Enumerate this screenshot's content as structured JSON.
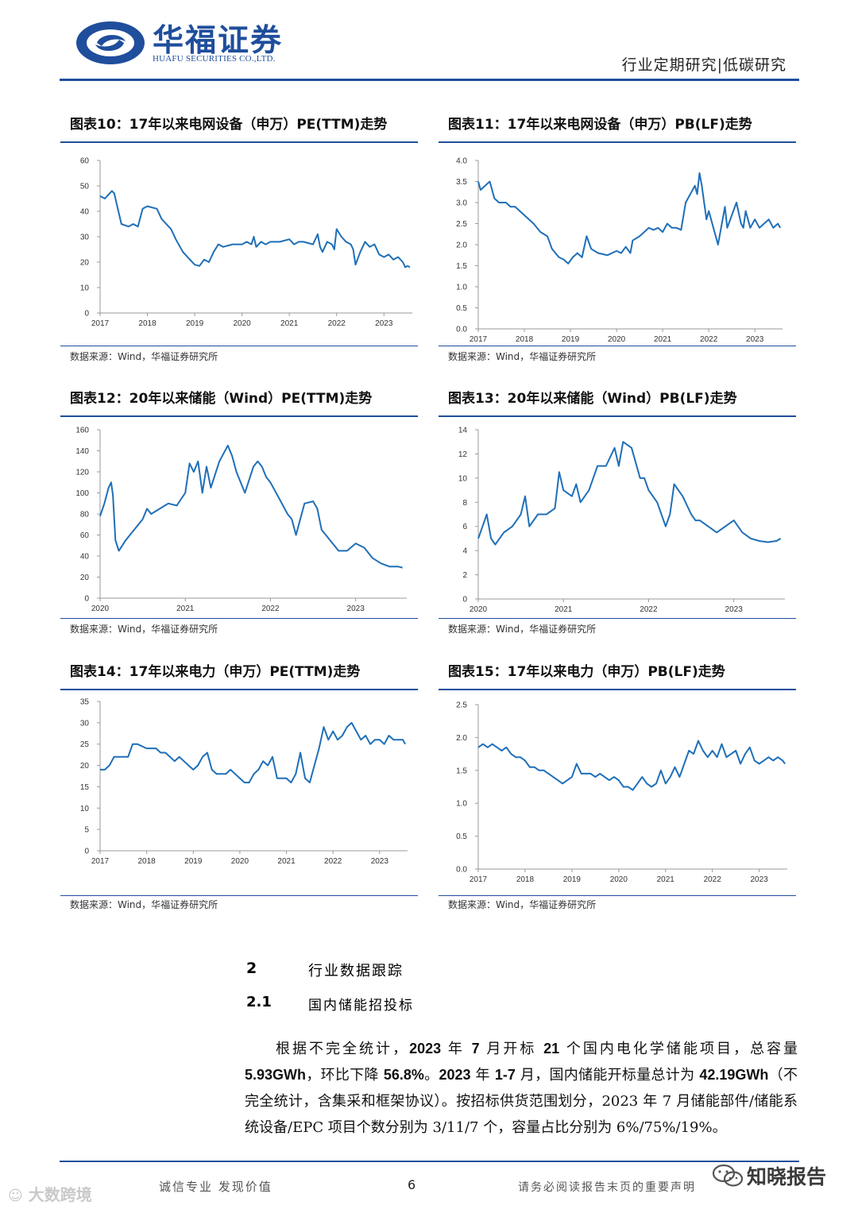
{
  "header": {
    "logo_cn": "华福证券",
    "logo_en": "HUAFU SECURITIES CO.,LTD.",
    "report_type": "行业定期研究|低碳研究"
  },
  "colors": {
    "brand": "#1f4e9c",
    "line": "#1f6fb8"
  },
  "chart_data": [
    {
      "id": "c10",
      "type": "line",
      "title": "图表10：17年以来电网设备（申万）PE(TTM)走势",
      "source": "数据来源：Wind，华福证券研究所",
      "x_ticks": [
        "2017",
        "2018",
        "2019",
        "2020",
        "2021",
        "2022",
        "2023"
      ],
      "x_range": [
        2017,
        2023.6
      ],
      "y_ticks": [
        "0",
        "10",
        "20",
        "30",
        "40",
        "50",
        "60"
      ],
      "ylim": [
        0,
        60
      ],
      "series": [
        {
          "name": "PE(TTM)",
          "x": [
            2017.0,
            2017.1,
            2017.2,
            2017.25,
            2017.3,
            2017.35,
            2017.45,
            2017.6,
            2017.7,
            2017.8,
            2017.9,
            2018.0,
            2018.2,
            2018.3,
            2018.5,
            2018.6,
            2018.75,
            2018.9,
            2019.0,
            2019.1,
            2019.2,
            2019.3,
            2019.4,
            2019.5,
            2019.6,
            2019.8,
            2020.0,
            2020.1,
            2020.2,
            2020.25,
            2020.3,
            2020.4,
            2020.5,
            2020.6,
            2020.8,
            2021.0,
            2021.1,
            2021.2,
            2021.3,
            2021.5,
            2021.6,
            2021.65,
            2021.7,
            2021.8,
            2021.9,
            2021.95,
            2022.0,
            2022.1,
            2022.2,
            2022.3,
            2022.35,
            2022.4,
            2022.5,
            2022.6,
            2022.7,
            2022.8,
            2022.9,
            2023.0,
            2023.1,
            2023.2,
            2023.3,
            2023.4,
            2023.45,
            2023.5,
            2023.55
          ],
          "y": [
            46,
            45,
            47,
            48,
            47,
            43,
            35,
            34,
            35,
            34,
            41,
            42,
            41,
            37,
            33,
            29,
            24,
            21,
            19,
            18.5,
            21,
            20,
            24,
            27,
            26,
            27,
            27,
            28,
            27,
            30,
            26,
            28,
            27,
            28,
            28,
            29,
            27,
            28,
            28,
            27,
            31,
            26,
            24,
            28,
            27,
            25,
            33,
            30,
            28,
            27,
            25,
            19,
            24,
            28,
            26,
            27,
            23,
            22,
            23,
            21,
            22,
            20,
            18,
            18.5,
            18
          ]
        }
      ]
    },
    {
      "id": "c11",
      "type": "line",
      "title": "图表11：17年以来电网设备（申万）PB(LF)走势",
      "source": "数据来源：Wind，华福证券研究所",
      "x_ticks": [
        "2017",
        "2018",
        "2019",
        "2020",
        "2021",
        "2022",
        "2023"
      ],
      "x_range": [
        2017,
        2023.6
      ],
      "y_ticks": [
        "0.0",
        "0.5",
        "1.0",
        "1.5",
        "2.0",
        "2.5",
        "3.0",
        "3.5",
        "4.0"
      ],
      "ylim": [
        0,
        4
      ],
      "series": [
        {
          "name": "PB(LF)",
          "x": [
            2017.0,
            2017.05,
            2017.15,
            2017.25,
            2017.35,
            2017.45,
            2017.6,
            2017.7,
            2017.8,
            2017.9,
            2018.0,
            2018.2,
            2018.35,
            2018.5,
            2018.6,
            2018.75,
            2018.85,
            2018.95,
            2019.05,
            2019.15,
            2019.25,
            2019.35,
            2019.45,
            2019.6,
            2019.8,
            2020.0,
            2020.1,
            2020.2,
            2020.3,
            2020.35,
            2020.5,
            2020.6,
            2020.7,
            2020.8,
            2020.9,
            2021.0,
            2021.1,
            2021.2,
            2021.3,
            2021.4,
            2021.5,
            2021.6,
            2021.7,
            2021.75,
            2021.8,
            2021.85,
            2021.9,
            2021.95,
            2022.0,
            2022.1,
            2022.2,
            2022.3,
            2022.35,
            2022.4,
            2022.5,
            2022.6,
            2022.7,
            2022.75,
            2022.8,
            2022.9,
            2023.0,
            2023.1,
            2023.2,
            2023.3,
            2023.4,
            2023.5,
            2023.55
          ],
          "y": [
            3.5,
            3.3,
            3.4,
            3.5,
            3.1,
            3.0,
            3.0,
            2.9,
            2.9,
            2.8,
            2.7,
            2.5,
            2.3,
            2.2,
            1.9,
            1.7,
            1.65,
            1.55,
            1.7,
            1.8,
            1.7,
            2.2,
            1.9,
            1.8,
            1.75,
            1.85,
            1.8,
            1.95,
            1.8,
            2.1,
            2.2,
            2.3,
            2.4,
            2.35,
            2.4,
            2.3,
            2.5,
            2.4,
            2.4,
            2.35,
            3.0,
            3.2,
            3.4,
            3.2,
            3.7,
            3.4,
            3.0,
            2.6,
            2.8,
            2.4,
            2.0,
            2.6,
            2.9,
            2.4,
            2.7,
            3.0,
            2.5,
            2.4,
            2.8,
            2.4,
            2.6,
            2.4,
            2.5,
            2.6,
            2.4,
            2.5,
            2.4
          ]
        }
      ]
    },
    {
      "id": "c12",
      "type": "line",
      "title": "图表12：20年以来储能（Wind）PE(TTM)走势",
      "source": "数据来源：Wind，华福证券研究所",
      "x_ticks": [
        "2020",
        "2021",
        "2022",
        "2023"
      ],
      "x_range": [
        2020,
        2023.6
      ],
      "y_ticks": [
        "0",
        "20",
        "40",
        "60",
        "80",
        "100",
        "120",
        "140",
        "160"
      ],
      "ylim": [
        0,
        160
      ],
      "series": [
        {
          "name": "PE(TTM)",
          "x": [
            2020.0,
            2020.05,
            2020.1,
            2020.13,
            2020.15,
            2020.18,
            2020.22,
            2020.3,
            2020.4,
            2020.5,
            2020.55,
            2020.6,
            2020.7,
            2020.8,
            2020.9,
            2021.0,
            2021.05,
            2021.1,
            2021.15,
            2021.2,
            2021.25,
            2021.3,
            2021.4,
            2021.5,
            2021.55,
            2021.6,
            2021.7,
            2021.8,
            2021.85,
            2021.9,
            2021.95,
            2022.0,
            2022.1,
            2022.2,
            2022.25,
            2022.3,
            2022.4,
            2022.5,
            2022.55,
            2022.6,
            2022.7,
            2022.8,
            2022.9,
            2023.0,
            2023.1,
            2023.2,
            2023.3,
            2023.4,
            2023.5,
            2023.55
          ],
          "y": [
            78,
            90,
            105,
            110,
            98,
            55,
            45,
            55,
            65,
            75,
            85,
            80,
            85,
            90,
            88,
            100,
            128,
            120,
            130,
            100,
            125,
            105,
            130,
            145,
            135,
            120,
            100,
            125,
            130,
            125,
            115,
            110,
            95,
            80,
            75,
            60,
            90,
            92,
            85,
            65,
            55,
            45,
            45,
            52,
            48,
            38,
            33,
            30,
            30,
            29
          ]
        }
      ]
    },
    {
      "id": "c13",
      "type": "line",
      "title": "图表13：20年以来储能（Wind）PB(LF)走势",
      "source": "数据来源：Wind，华福证券研究所",
      "x_ticks": [
        "2020",
        "2021",
        "2022",
        "2023"
      ],
      "x_range": [
        2020,
        2023.6
      ],
      "y_ticks": [
        "0",
        "2",
        "4",
        "6",
        "8",
        "10",
        "12",
        "14"
      ],
      "ylim": [
        0,
        14
      ],
      "series": [
        {
          "name": "PB(LF)",
          "x": [
            2020.0,
            2020.05,
            2020.1,
            2020.15,
            2020.2,
            2020.3,
            2020.4,
            2020.5,
            2020.55,
            2020.6,
            2020.7,
            2020.8,
            2020.9,
            2020.95,
            2021.0,
            2021.1,
            2021.15,
            2021.2,
            2021.3,
            2021.4,
            2021.5,
            2021.6,
            2021.65,
            2021.7,
            2021.8,
            2021.9,
            2021.95,
            2022.0,
            2022.1,
            2022.2,
            2022.25,
            2022.3,
            2022.4,
            2022.5,
            2022.55,
            2022.6,
            2022.7,
            2022.8,
            2022.9,
            2023.0,
            2023.1,
            2023.2,
            2023.3,
            2023.4,
            2023.5,
            2023.55
          ],
          "y": [
            5,
            6,
            7,
            5,
            4.5,
            5.5,
            6,
            7,
            8.5,
            6,
            7,
            7,
            7.5,
            10.5,
            9,
            8.5,
            9.5,
            8,
            9,
            11,
            11,
            12.5,
            11,
            13,
            12.5,
            10,
            10,
            9,
            8,
            6,
            7,
            9.5,
            8.5,
            7,
            6.5,
            6.5,
            6,
            5.5,
            6,
            6.5,
            5.5,
            5,
            4.8,
            4.7,
            4.8,
            5
          ]
        }
      ]
    },
    {
      "id": "c14",
      "type": "line",
      "title": "图表14：17年以来电力（申万）PE(TTM)走势",
      "source": "数据来源：Wind，华福证券研究所",
      "x_ticks": [
        "2017",
        "2018",
        "2019",
        "2020",
        "2021",
        "2022",
        "2023"
      ],
      "x_range": [
        2017,
        2023.6
      ],
      "y_ticks": [
        "0",
        "5",
        "10",
        "15",
        "20",
        "25",
        "30",
        "35"
      ],
      "ylim": [
        0,
        35
      ],
      "series": [
        {
          "name": "PE(TTM)",
          "x": [
            2017.0,
            2017.1,
            2017.2,
            2017.3,
            2017.4,
            2017.6,
            2017.7,
            2017.8,
            2018.0,
            2018.1,
            2018.2,
            2018.3,
            2018.4,
            2018.5,
            2018.6,
            2018.7,
            2018.8,
            2018.9,
            2019.0,
            2019.1,
            2019.2,
            2019.3,
            2019.4,
            2019.5,
            2019.6,
            2019.7,
            2019.8,
            2019.9,
            2020.0,
            2020.1,
            2020.2,
            2020.3,
            2020.4,
            2020.5,
            2020.6,
            2020.7,
            2020.8,
            2020.9,
            2021.0,
            2021.1,
            2021.2,
            2021.3,
            2021.4,
            2021.5,
            2021.6,
            2021.7,
            2021.8,
            2021.9,
            2022.0,
            2022.1,
            2022.2,
            2022.3,
            2022.4,
            2022.5,
            2022.6,
            2022.7,
            2022.8,
            2022.9,
            2023.0,
            2023.1,
            2023.2,
            2023.3,
            2023.4,
            2023.5,
            2023.55
          ],
          "y": [
            19,
            19,
            20,
            22,
            22,
            22,
            25,
            25,
            24,
            24,
            24,
            23,
            23,
            22,
            21,
            22,
            21,
            20,
            19,
            20,
            22,
            23,
            19,
            18,
            18,
            18,
            19,
            18,
            17,
            16,
            16,
            18,
            19,
            21,
            20,
            22,
            17,
            17,
            17,
            16,
            18,
            23,
            17,
            16,
            20,
            24,
            29,
            26,
            28,
            26,
            27,
            29,
            30,
            28,
            26,
            27,
            25,
            26,
            26,
            25,
            27,
            26,
            26,
            26,
            25
          ]
        }
      ]
    },
    {
      "id": "c15",
      "type": "line",
      "title": "图表15：17年以来电力（申万）PB(LF)走势",
      "source": "数据来源：Wind，华福证券研究所",
      "x_ticks": [
        "2017",
        "2018",
        "2019",
        "2020",
        "2021",
        "2022",
        "2023"
      ],
      "x_range": [
        2017,
        2023.6
      ],
      "y_ticks": [
        "0.0",
        "0.5",
        "1.0",
        "1.5",
        "2.0",
        "2.5"
      ],
      "ylim": [
        0,
        2.5
      ],
      "series": [
        {
          "name": "PB(LF)",
          "x": [
            2017.0,
            2017.1,
            2017.2,
            2017.3,
            2017.4,
            2017.5,
            2017.6,
            2017.7,
            2017.8,
            2017.9,
            2018.0,
            2018.1,
            2018.2,
            2018.3,
            2018.4,
            2018.5,
            2018.6,
            2018.7,
            2018.8,
            2018.9,
            2019.0,
            2019.1,
            2019.2,
            2019.3,
            2019.4,
            2019.5,
            2019.6,
            2019.7,
            2019.8,
            2019.9,
            2020.0,
            2020.1,
            2020.2,
            2020.3,
            2020.4,
            2020.5,
            2020.6,
            2020.7,
            2020.8,
            2020.9,
            2021.0,
            2021.1,
            2021.2,
            2021.3,
            2021.4,
            2021.5,
            2021.6,
            2021.7,
            2021.8,
            2021.9,
            2022.0,
            2022.1,
            2022.2,
            2022.3,
            2022.4,
            2022.5,
            2022.6,
            2022.7,
            2022.8,
            2022.9,
            2023.0,
            2023.1,
            2023.2,
            2023.3,
            2023.4,
            2023.5,
            2023.55
          ],
          "y": [
            1.85,
            1.9,
            1.85,
            1.9,
            1.85,
            1.8,
            1.85,
            1.75,
            1.7,
            1.7,
            1.65,
            1.55,
            1.55,
            1.5,
            1.5,
            1.45,
            1.4,
            1.35,
            1.3,
            1.35,
            1.4,
            1.6,
            1.45,
            1.45,
            1.45,
            1.4,
            1.45,
            1.4,
            1.35,
            1.4,
            1.35,
            1.25,
            1.25,
            1.2,
            1.3,
            1.4,
            1.3,
            1.25,
            1.3,
            1.5,
            1.3,
            1.4,
            1.55,
            1.4,
            1.6,
            1.8,
            1.75,
            1.95,
            1.8,
            1.7,
            1.8,
            1.7,
            1.9,
            1.7,
            1.75,
            1.8,
            1.6,
            1.75,
            1.85,
            1.65,
            1.6,
            1.65,
            1.7,
            1.65,
            1.7,
            1.65,
            1.6
          ]
        }
      ]
    }
  ],
  "section": {
    "num": "2",
    "title": "行业数据跟踪",
    "sub_num": "2.1",
    "sub_title": "国内储能招投标",
    "para": {
      "p1": "根据不完全统计，",
      "b1": "2023",
      "p2": " 年 ",
      "b2": "7",
      "p3": " 月开标 ",
      "b3": "21",
      "p4": " 个国内电化学储能项目，总容量 ",
      "b4": "5.93GWh",
      "p5": "，环比下降 ",
      "b5": "56.8%",
      "p6": "。",
      "b6": "2023",
      "p7": " 年 ",
      "b7": "1-7",
      "p8": " 月，国内储能开标量总计为 ",
      "b8": "42.19GWh",
      "p9": "（不完全统计，含集采和框架协议）。按招标供货范围划分，2023 年 7 月储能部件/储能系统设备/EPC 项目个数分别为 3/11/7 个，容量占比分别为 6%/75%/19%。"
    }
  },
  "footer": {
    "left": "诚信专业  发现价值",
    "page": "6",
    "right": "请务必阅读报告末页的重要声明",
    "watermark_left": "大数跨境",
    "watermark_right": "知晓报告"
  }
}
